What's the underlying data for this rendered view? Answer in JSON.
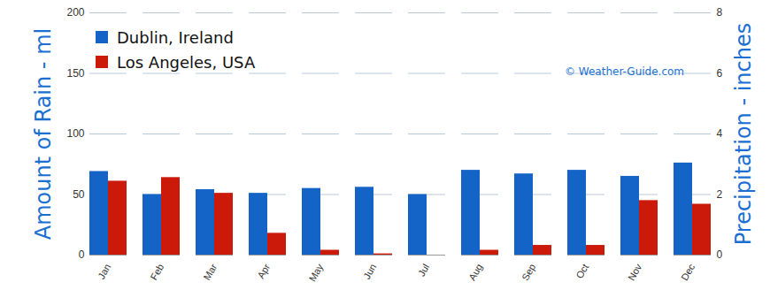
{
  "chart_data": {
    "type": "bar",
    "y_label": "Amount of Rain - ml",
    "y2_label": "Precipitation - inches",
    "annotations": [
      "© Weather-Guide.com"
    ],
    "categories": [
      "Jan",
      "Feb",
      "Mar",
      "Apr",
      "May",
      "Jun",
      "Jul",
      "Aug",
      "Sep",
      "Oct",
      "Nov",
      "Dec"
    ],
    "series": [
      {
        "name": "Dublin, Ireland",
        "color": "#1464c8",
        "values": [
          69,
          50,
          54,
          51,
          55,
          56,
          50,
          70,
          67,
          70,
          65,
          76
        ]
      },
      {
        "name": "Los Angeles, USA",
        "color": "#cc1a0a",
        "values": [
          61,
          64,
          51,
          18,
          4,
          1,
          0,
          4,
          8,
          8,
          45,
          42
        ]
      }
    ],
    "ylim": [
      0,
      200
    ],
    "yticks": [
      0,
      50,
      100,
      150,
      200
    ],
    "y2lim": [
      0,
      8
    ],
    "y2ticks": [
      0,
      2,
      4,
      6,
      8
    ],
    "grid": true,
    "legend": "top-left"
  }
}
